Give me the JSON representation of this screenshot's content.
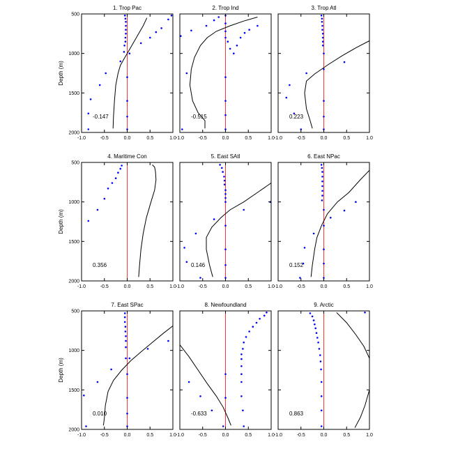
{
  "chart_data": [
    {
      "type": "line",
      "title": "1. Trop Pac",
      "annotation": "-0.147",
      "ylabel": "Depth (m)",
      "xlim": [
        -1.0,
        1.0
      ],
      "ylim": [
        500,
        2000
      ],
      "x_ticks": [
        "-1.0",
        "-0.5",
        "0.0",
        "0.5",
        "1.0"
      ],
      "y_ticks": [
        "500",
        "1000",
        "1500",
        "2000"
      ],
      "line": [
        [
          0.43,
          550
        ],
        [
          0.35,
          650
        ],
        [
          0.25,
          750
        ],
        [
          0.15,
          850
        ],
        [
          0.05,
          950
        ],
        [
          -0.05,
          1050
        ],
        [
          -0.15,
          1150
        ],
        [
          -0.2,
          1250
        ],
        [
          -0.25,
          1400
        ],
        [
          -0.28,
          1600
        ],
        [
          -0.3,
          1800
        ],
        [
          -0.31,
          1950
        ]
      ],
      "points": [
        [
          -0.05,
          520
        ],
        [
          -0.04,
          560
        ],
        [
          -0.03,
          600
        ],
        [
          -0.03,
          650
        ],
        [
          -0.03,
          700
        ],
        [
          -0.03,
          750
        ],
        [
          -0.04,
          800
        ],
        [
          -0.04,
          850
        ],
        [
          -0.06,
          900
        ],
        [
          -0.07,
          980
        ],
        [
          0.05,
          1000
        ],
        [
          -0.15,
          1100
        ],
        [
          -0.47,
          1250
        ],
        [
          -0.6,
          1400
        ],
        [
          -0.8,
          1580
        ],
        [
          -0.85,
          1760
        ],
        [
          -0.85,
          1960
        ],
        [
          0.0,
          1300
        ],
        [
          0.0,
          1600
        ],
        [
          0.0,
          1800
        ],
        [
          0.0,
          1960
        ],
        [
          0.3,
          870
        ],
        [
          0.5,
          800
        ],
        [
          0.63,
          730
        ],
        [
          0.75,
          680
        ],
        [
          0.9,
          570
        ],
        [
          0.97,
          520
        ]
      ]
    },
    {
      "type": "line",
      "title": "2. Trop Ind",
      "annotation": "-0.515",
      "ylabel": "",
      "xlim": [
        -1.0,
        1.0
      ],
      "ylim": [
        500,
        2000
      ],
      "x_ticks": [
        "-1.0",
        "-0.5",
        "0.0",
        "0.5",
        "1.0"
      ],
      "y_ticks": [],
      "line": [
        [
          0.7,
          540
        ],
        [
          0.4,
          590
        ],
        [
          0.1,
          650
        ],
        [
          -0.2,
          720
        ],
        [
          -0.4,
          800
        ],
        [
          -0.55,
          900
        ],
        [
          -0.68,
          1050
        ],
        [
          -0.75,
          1200
        ],
        [
          -0.78,
          1400
        ],
        [
          -0.72,
          1600
        ],
        [
          -0.6,
          1750
        ],
        [
          -0.45,
          1850
        ],
        [
          -0.45,
          1950
        ]
      ],
      "points": [
        [
          -0.15,
          540
        ],
        [
          -0.25,
          580
        ],
        [
          -0.42,
          650
        ],
        [
          -0.75,
          710
        ],
        [
          -0.98,
          780
        ],
        [
          0.0,
          520
        ],
        [
          0.0,
          620
        ],
        [
          0.0,
          720
        ],
        [
          0.0,
          800
        ],
        [
          0.05,
          850
        ],
        [
          0.1,
          940
        ],
        [
          0.18,
          1000
        ],
        [
          0.25,
          900
        ],
        [
          0.33,
          800
        ],
        [
          0.42,
          740
        ],
        [
          0.52,
          700
        ],
        [
          0.7,
          650
        ],
        [
          -0.85,
          1250
        ],
        [
          -0.95,
          1960
        ],
        [
          0.0,
          1300
        ],
        [
          0.0,
          1600
        ],
        [
          0.0,
          1780
        ],
        [
          0.0,
          1960
        ]
      ]
    },
    {
      "type": "line",
      "title": "3. Trop Atl",
      "annotation": "0.223",
      "ylabel": "",
      "xlim": [
        -1.0,
        1.0
      ],
      "ylim": [
        500,
        2000
      ],
      "x_ticks": [
        "-1.0",
        "-0.5",
        "0.0",
        "0.5",
        "1.0"
      ],
      "y_ticks": [],
      "line": [
        [
          1.0,
          840
        ],
        [
          0.7,
          930
        ],
        [
          0.4,
          1030
        ],
        [
          0.1,
          1140
        ],
        [
          -0.2,
          1260
        ],
        [
          -0.38,
          1350
        ],
        [
          -0.42,
          1500
        ],
        [
          -0.38,
          1700
        ],
        [
          -0.3,
          1850
        ],
        [
          -0.25,
          1950
        ]
      ],
      "points": [
        [
          -0.05,
          520
        ],
        [
          -0.04,
          560
        ],
        [
          -0.04,
          600
        ],
        [
          -0.03,
          650
        ],
        [
          -0.03,
          700
        ],
        [
          -0.02,
          750
        ],
        [
          -0.02,
          800
        ],
        [
          -0.02,
          850
        ],
        [
          -0.02,
          900
        ],
        [
          0.0,
          1000
        ],
        [
          0.45,
          1110
        ],
        [
          0.0,
          1200
        ],
        [
          -0.38,
          1250
        ],
        [
          -0.75,
          1400
        ],
        [
          -0.82,
          1560
        ],
        [
          -0.65,
          1760
        ],
        [
          -0.5,
          1960
        ],
        [
          0.0,
          1600
        ],
        [
          0.0,
          1800
        ],
        [
          0.0,
          1960
        ]
      ]
    },
    {
      "type": "line",
      "title": "4. Maritime Con",
      "annotation": "0.356",
      "ylabel": "Depth (m)",
      "xlim": [
        -1.0,
        1.0
      ],
      "ylim": [
        500,
        2000
      ],
      "x_ticks": [
        "-1.0",
        "-0.5",
        "0.0",
        "0.5",
        "1.0"
      ],
      "y_ticks": [
        "500",
        "1000",
        "1500",
        "2000"
      ],
      "line": [
        [
          0.55,
          530
        ],
        [
          0.6,
          560
        ],
        [
          0.62,
          620
        ],
        [
          0.63,
          720
        ],
        [
          0.6,
          850
        ],
        [
          0.52,
          1000
        ],
        [
          0.42,
          1200
        ],
        [
          0.35,
          1400
        ],
        [
          0.3,
          1600
        ],
        [
          0.27,
          1800
        ],
        [
          0.25,
          1950
        ]
      ],
      "points": [
        [
          -0.12,
          540
        ],
        [
          -0.15,
          580
        ],
        [
          -0.2,
          630
        ],
        [
          -0.25,
          700
        ],
        [
          -0.33,
          760
        ],
        [
          -0.42,
          830
        ],
        [
          -0.5,
          960
        ],
        [
          -0.65,
          1100
        ],
        [
          -0.85,
          1240
        ]
      ]
    },
    {
      "type": "line",
      "title": "5. East SAtl",
      "annotation": "0.146",
      "ylabel": "",
      "xlim": [
        -1.0,
        1.0
      ],
      "ylim": [
        500,
        2000
      ],
      "x_ticks": [
        "-1.0",
        "-0.5",
        "0.0",
        "0.5",
        "1.0"
      ],
      "y_ticks": [],
      "line": [
        [
          1.0,
          760
        ],
        [
          0.7,
          880
        ],
        [
          0.4,
          1000
        ],
        [
          0.1,
          1100
        ],
        [
          -0.1,
          1200
        ],
        [
          -0.3,
          1320
        ],
        [
          -0.42,
          1450
        ],
        [
          -0.42,
          1600
        ],
        [
          -0.35,
          1800
        ],
        [
          -0.28,
          1950
        ]
      ],
      "points": [
        [
          -0.12,
          530
        ],
        [
          -0.08,
          570
        ],
        [
          -0.06,
          620
        ],
        [
          -0.03,
          680
        ],
        [
          -0.02,
          730
        ],
        [
          -0.02,
          780
        ],
        [
          0.0,
          850
        ],
        [
          0.0,
          900
        ],
        [
          0.0,
          950
        ],
        [
          0.0,
          1000
        ],
        [
          0.4,
          1100
        ],
        [
          0.98,
          1000
        ],
        [
          -0.25,
          1220
        ],
        [
          -0.65,
          1400
        ],
        [
          -0.9,
          1580
        ],
        [
          -0.85,
          1760
        ],
        [
          -0.55,
          1960
        ],
        [
          0.0,
          1300
        ],
        [
          0.0,
          1600
        ],
        [
          0.0,
          1800
        ],
        [
          0.0,
          1960
        ]
      ]
    },
    {
      "type": "line",
      "title": "6. East NPac",
      "annotation": "0.152",
      "ylabel": "",
      "xlim": [
        -1.0,
        1.0
      ],
      "ylim": [
        500,
        2000
      ],
      "x_ticks": [
        "-1.0",
        "-0.5",
        "0.0",
        "0.5",
        "1.0"
      ],
      "y_ticks": [],
      "line": [
        [
          1.0,
          600
        ],
        [
          0.8,
          720
        ],
        [
          0.55,
          880
        ],
        [
          0.3,
          1000
        ],
        [
          0.08,
          1150
        ],
        [
          -0.05,
          1300
        ],
        [
          -0.15,
          1450
        ],
        [
          -0.2,
          1600
        ],
        [
          -0.25,
          1800
        ],
        [
          -0.28,
          1950
        ]
      ],
      "points": [
        [
          -0.05,
          530
        ],
        [
          -0.04,
          570
        ],
        [
          -0.03,
          620
        ],
        [
          -0.03,
          680
        ],
        [
          -0.03,
          740
        ],
        [
          -0.03,
          800
        ],
        [
          -0.03,
          860
        ],
        [
          -0.03,
          920
        ],
        [
          -0.04,
          980
        ],
        [
          0.0,
          1100
        ],
        [
          0.7,
          1000
        ],
        [
          0.45,
          1110
        ],
        [
          0.15,
          1200
        ],
        [
          -0.22,
          1400
        ],
        [
          -0.42,
          1580
        ],
        [
          -0.45,
          1780
        ],
        [
          -0.52,
          1960
        ],
        [
          0.0,
          1300
        ],
        [
          0.0,
          1600
        ],
        [
          0.0,
          1780
        ],
        [
          0.0,
          1960
        ]
      ]
    },
    {
      "type": "line",
      "title": "7. East SPac",
      "annotation": "0.010",
      "ylabel": "Depth (m)",
      "xlim": [
        -1.0,
        1.0
      ],
      "ylim": [
        500,
        2000
      ],
      "x_ticks": [
        "-1.0",
        "-0.5",
        "0.0",
        "0.5",
        "1.0"
      ],
      "y_ticks": [
        "500",
        "1000",
        "1500",
        "2000"
      ],
      "line": [
        [
          1.0,
          690
        ],
        [
          0.8,
          780
        ],
        [
          0.55,
          900
        ],
        [
          0.3,
          1020
        ],
        [
          0.08,
          1130
        ],
        [
          -0.12,
          1250
        ],
        [
          -0.3,
          1380
        ],
        [
          -0.42,
          1520
        ],
        [
          -0.48,
          1700
        ],
        [
          -0.5,
          1850
        ],
        [
          -0.52,
          1950
        ]
      ],
      "points": [
        [
          -0.05,
          530
        ],
        [
          -0.05,
          580
        ],
        [
          -0.05,
          640
        ],
        [
          -0.04,
          700
        ],
        [
          -0.04,
          760
        ],
        [
          -0.03,
          820
        ],
        [
          -0.03,
          880
        ],
        [
          -0.03,
          960
        ],
        [
          -0.03,
          1100
        ],
        [
          0.05,
          1100
        ],
        [
          0.45,
          980
        ],
        [
          0.9,
          880
        ],
        [
          -0.35,
          1240
        ],
        [
          -0.65,
          1400
        ],
        [
          -0.95,
          1570
        ],
        [
          -0.9,
          1960
        ],
        [
          0.0,
          1300
        ],
        [
          0.0,
          1600
        ],
        [
          0.0,
          1800
        ],
        [
          0.0,
          1960
        ]
      ]
    },
    {
      "type": "line",
      "title": "8. Newfoundland",
      "annotation": "-0.633",
      "ylabel": "",
      "xlim": [
        -1.0,
        1.0
      ],
      "ylim": [
        500,
        2000
      ],
      "x_ticks": [
        "-1.0",
        "-0.5",
        "0.0",
        "0.5",
        "1.0"
      ],
      "y_ticks": [],
      "line": [
        [
          -1.0,
          930
        ],
        [
          -0.8,
          1080
        ],
        [
          -0.6,
          1250
        ],
        [
          -0.4,
          1420
        ],
        [
          -0.2,
          1580
        ],
        [
          -0.05,
          1720
        ],
        [
          0.05,
          1850
        ],
        [
          0.12,
          1950
        ]
      ],
      "points": [
        [
          0.9,
          520
        ],
        [
          0.85,
          560
        ],
        [
          0.75,
          600
        ],
        [
          0.68,
          650
        ],
        [
          0.6,
          700
        ],
        [
          0.52,
          760
        ],
        [
          0.45,
          830
        ],
        [
          0.4,
          900
        ],
        [
          0.38,
          980
        ],
        [
          0.35,
          1050
        ],
        [
          0.35,
          1110
        ],
        [
          0.35,
          1200
        ],
        [
          0.35,
          1300
        ],
        [
          0.35,
          1400
        ],
        [
          0.35,
          1580
        ],
        [
          0.38,
          1760
        ],
        [
          0.4,
          1960
        ],
        [
          -0.8,
          1400
        ],
        [
          -0.55,
          1580
        ],
        [
          -0.3,
          1760
        ],
        [
          -0.05,
          1960
        ],
        [
          0.0,
          1300
        ],
        [
          0.0,
          1600
        ]
      ]
    },
    {
      "type": "line",
      "title": "9. Arctic",
      "annotation": "0.863",
      "ylabel": "",
      "xlim": [
        -1.0,
        1.0
      ],
      "ylim": [
        500,
        2000
      ],
      "x_ticks": [
        "-1.0",
        "-0.5",
        "0.0",
        "0.5",
        "1.0"
      ],
      "y_ticks": [],
      "line": [
        [
          0.28,
          520
        ],
        [
          0.5,
          650
        ],
        [
          0.7,
          800
        ],
        [
          0.88,
          950
        ],
        [
          1.0,
          1100
        ]
      ],
      "line2": [
        [
          1.0,
          1500
        ],
        [
          0.9,
          1700
        ],
        [
          0.8,
          1850
        ],
        [
          0.68,
          1980
        ]
      ],
      "points": [
        [
          -0.3,
          530
        ],
        [
          -0.25,
          570
        ],
        [
          -0.22,
          620
        ],
        [
          -0.2,
          670
        ],
        [
          -0.18,
          720
        ],
        [
          -0.16,
          780
        ],
        [
          -0.14,
          840
        ],
        [
          -0.12,
          900
        ],
        [
          -0.1,
          980
        ],
        [
          -0.08,
          1060
        ],
        [
          -0.07,
          1140
        ],
        [
          -0.06,
          1240
        ],
        [
          -0.05,
          1400
        ],
        [
          -0.05,
          1580
        ],
        [
          -0.05,
          1760
        ],
        [
          -0.05,
          1960
        ],
        [
          0.9,
          520
        ]
      ]
    }
  ]
}
